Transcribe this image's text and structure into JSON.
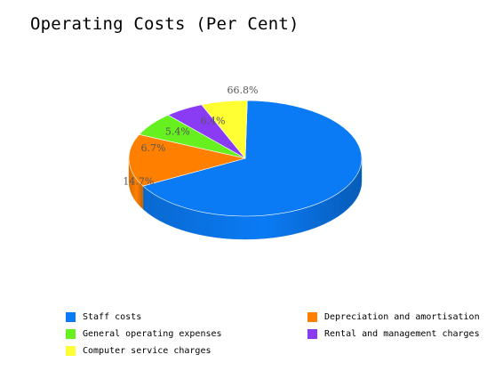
{
  "chart_data": {
    "type": "pie",
    "title": "Operating Costs (Per Cent)",
    "slices": [
      {
        "label": "Staff costs",
        "value": 66.8,
        "value_label": "66.8%",
        "color": "#0A7BF5"
      },
      {
        "label": "Depreciation and amortisation",
        "value": 14.7,
        "value_label": "14.7%",
        "color": "#FF8000"
      },
      {
        "label": "General operating expenses",
        "value": 6.7,
        "value_label": "6.7%",
        "color": "#66F020"
      },
      {
        "label": "Rental and management charges",
        "value": 5.4,
        "value_label": "5.4%",
        "color": "#8A3CF5"
      },
      {
        "label": "Computer service charges",
        "value": 6.4,
        "value_label": "6.4%",
        "color": "#FFFF33"
      }
    ],
    "legend_position": "bottom"
  }
}
